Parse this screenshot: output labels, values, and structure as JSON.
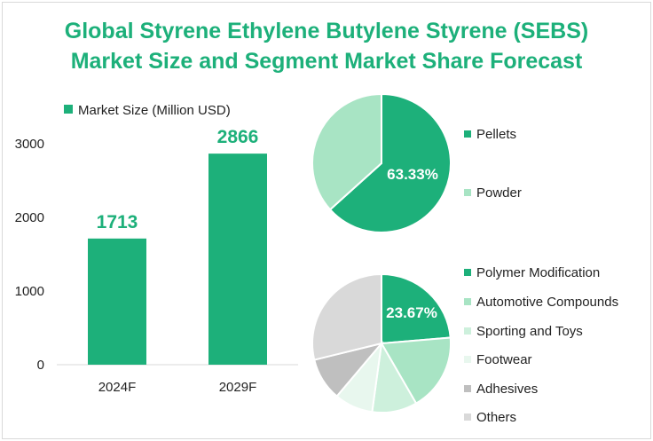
{
  "title_lines": [
    "Global Styrene Ethylene Butylene Styrene (SEBS)",
    "Market Size and Segment Market Share Forecast"
  ],
  "colors": {
    "title": "#1db07a",
    "bar": "#1db07a",
    "pellets": "#1db07a",
    "powder": "#a8e4c4",
    "polymer_modification": "#1db07a",
    "automotive_compounds": "#a8e4c4",
    "sporting_and_toys": "#cdf0dc",
    "footwear": "#e8f7ee",
    "adhesives": "#bfbfbf",
    "others": "#d9d9d9"
  },
  "chart_data": [
    {
      "type": "bar",
      "legend": "Market Size (Million USD)",
      "legend_position": "top-left",
      "categories": [
        "2024F",
        "2029F"
      ],
      "values": [
        1713,
        2866
      ],
      "data_labels": [
        "1713",
        "2866"
      ],
      "ylim": [
        0,
        3000
      ],
      "yticks": [
        "0",
        "1000",
        "2000",
        "3000"
      ],
      "grid": false
    },
    {
      "type": "pie",
      "legend_position": "right",
      "labels": [
        "Pellets",
        "Powder"
      ],
      "values": [
        63.33,
        36.67
      ],
      "data_label": "63.33%",
      "colors": [
        "#1db07a",
        "#a8e4c4"
      ]
    },
    {
      "type": "pie",
      "legend_position": "right",
      "labels": [
        "Polymer Modification",
        "Automotive Compounds",
        "Sporting and Toys",
        "Footwear",
        "Adhesives",
        "Others"
      ],
      "values": [
        23.67,
        18.0,
        10.5,
        9.0,
        10.0,
        28.83
      ],
      "data_label": "23.67%",
      "colors": [
        "#1db07a",
        "#a8e4c4",
        "#cdf0dc",
        "#e8f7ee",
        "#bfbfbf",
        "#d9d9d9"
      ]
    }
  ]
}
